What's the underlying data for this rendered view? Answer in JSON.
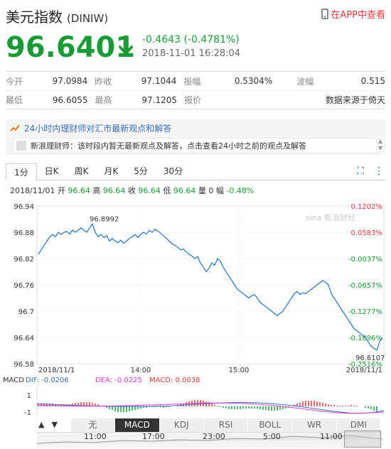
{
  "header": {
    "title": "美元指数",
    "code": "(DINIW)",
    "app_link": "在APP中查看"
  },
  "quote": {
    "price": "96.6401",
    "change": "-0.4643 (-0.4781%)",
    "timestamp": "2018-11-01 16:28:04",
    "color": "#1a9b37"
  },
  "stats": {
    "row1": [
      {
        "label": "今开",
        "value": "97.0984"
      },
      {
        "label": "昨收",
        "value": "97.1044"
      },
      {
        "label": "振幅",
        "value": "0.5304%"
      },
      {
        "label": "波幅",
        "value": "0.515"
      }
    ],
    "row2": [
      {
        "label": "最低",
        "value": "96.6055"
      },
      {
        "label": "最高",
        "value": "97.1205"
      },
      {
        "label": "报价",
        "value": "数据来源于倚天"
      }
    ]
  },
  "banner": {
    "title": "24小时内理财师对汇市最新观点和解答",
    "sub": "新浪理财师：该时段内暂无最新观点及解答，点击查看24小时之前的观点及解答"
  },
  "chart_tabs": [
    "1分",
    "日K",
    "周K",
    "月K",
    "5分",
    "30分"
  ],
  "info_line": {
    "date": "2018/11/01",
    "open_label": "开",
    "open": "96.64",
    "high_label": "高",
    "high": "96.64",
    "close_label": "收",
    "close": "96.64",
    "low_label": "低",
    "low": "96.64",
    "vol_label": "量",
    "vol": "0",
    "amp_label": "幅",
    "amp": "-0.48%"
  },
  "watermark": "sina 新浪财经",
  "indicator_tabs": [
    "无",
    "MACD",
    "KDJ",
    "RSI",
    "BOLL",
    "WR",
    "DMI"
  ],
  "macd": {
    "label": "MACD",
    "dif": "DIF: -0.0206",
    "dea": "DEA: -0.0225",
    "macd": "MACD: 0.0038",
    "y_ticks": [
      "1",
      "-1"
    ]
  },
  "nav_ticks": [
    "11:00",
    "17:00",
    "23:00",
    "5:00",
    "11:00"
  ],
  "nav_buttons": [
    "▲",
    "▼"
  ],
  "chart_data": {
    "type": "line",
    "x_labels": [
      "2018/11/1",
      "14:00",
      "15:00",
      "2018/11/1"
    ],
    "y_ticks_left": [
      "96.94",
      "96.88",
      "96.82",
      "96.76",
      "96.7",
      "96.64",
      "96.58"
    ],
    "y_ticks_right": [
      "0.1202%",
      "0.0583%",
      "-0.0037%",
      "-0.0657%",
      "-0.1277%",
      "-0.1896%",
      "-0.2516%"
    ],
    "ylim": [
      96.58,
      96.94
    ],
    "annotations": [
      {
        "label": "96.8992"
      },
      {
        "label": "96.6107"
      }
    ],
    "series": [
      {
        "values": [
          96.83,
          96.84,
          96.85,
          96.86,
          96.87,
          96.875,
          96.87,
          96.88,
          96.875,
          96.88,
          96.882,
          96.876,
          96.885,
          96.88,
          96.885,
          96.89,
          96.885,
          96.88,
          96.89,
          96.899,
          96.88,
          96.87,
          96.875,
          96.868,
          96.872,
          96.86,
          96.866,
          96.86,
          96.856,
          96.862,
          96.855,
          96.86,
          96.866,
          96.87,
          96.875,
          96.868,
          96.876,
          96.88,
          96.876,
          96.884,
          96.88,
          96.887,
          96.883,
          96.878,
          96.872,
          96.866,
          96.86,
          96.854,
          96.85,
          96.846,
          96.84,
          96.842,
          96.835,
          96.83,
          96.826,
          96.82,
          96.825,
          96.81,
          96.8,
          96.79,
          96.798,
          96.81,
          96.805,
          96.82,
          96.814,
          96.8,
          96.79,
          96.78,
          96.77,
          96.76,
          96.75,
          96.745,
          96.74,
          96.735,
          96.73,
          96.735,
          96.738,
          96.73,
          96.72,
          96.715,
          96.71,
          96.705,
          96.7,
          96.695,
          96.69,
          96.695,
          96.7,
          96.71,
          96.72,
          96.73,
          96.74,
          96.745,
          96.738,
          96.742,
          96.74,
          96.745,
          96.75,
          96.755,
          96.76,
          96.765,
          96.77,
          96.766,
          96.76,
          96.74,
          96.73,
          96.72,
          96.71,
          96.7,
          96.69,
          96.68,
          96.67,
          96.66,
          96.655,
          96.65,
          96.645,
          96.64,
          96.63,
          96.62,
          96.615,
          96.611,
          96.63,
          96.64
        ],
        "color": "#1f72c6"
      }
    ]
  }
}
